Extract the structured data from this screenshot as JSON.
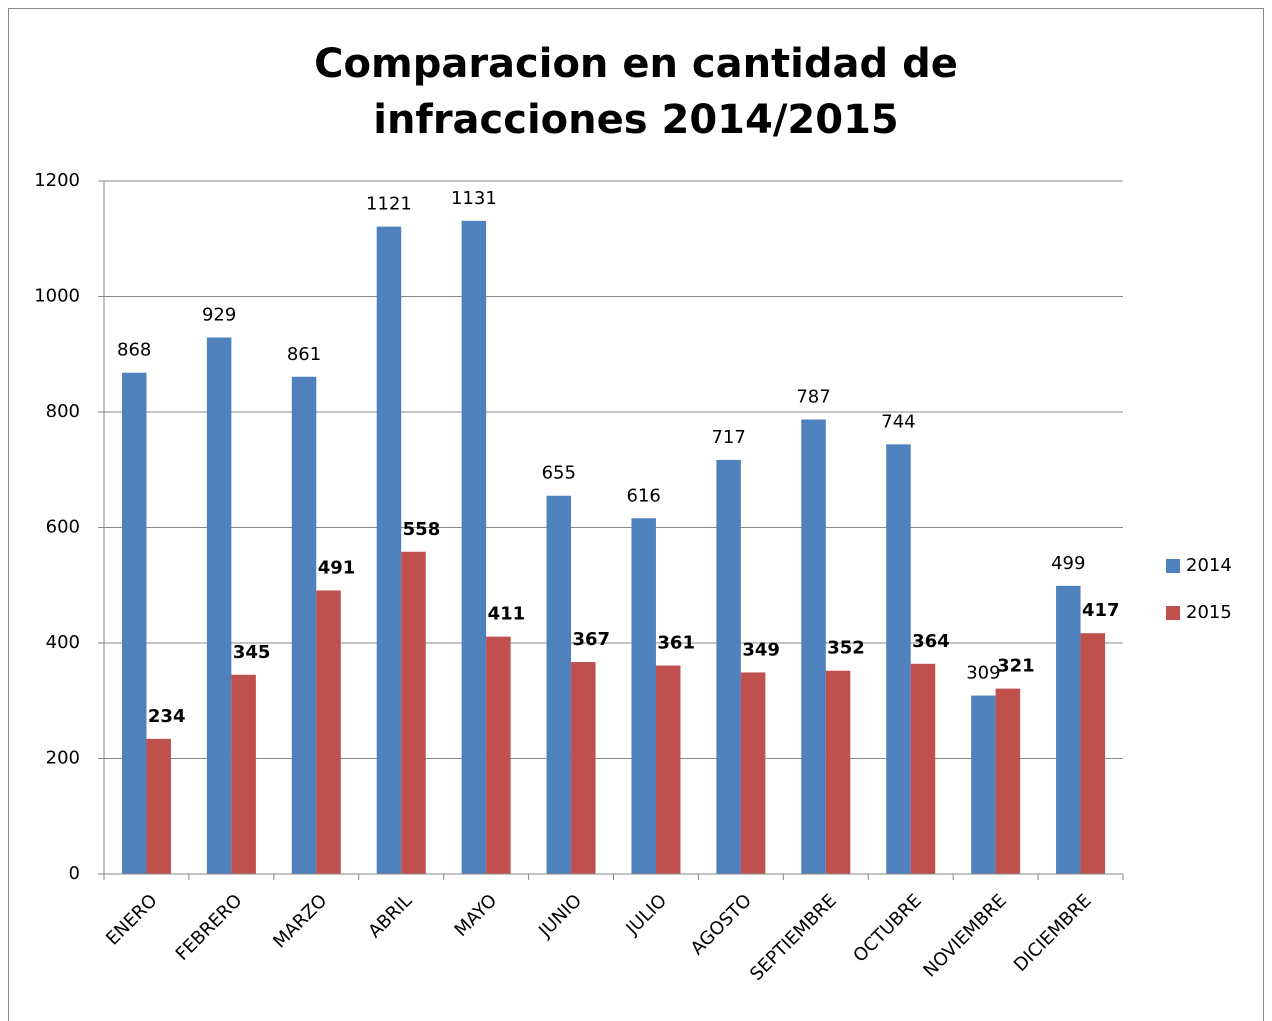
{
  "chart_data": {
    "type": "bar",
    "title": "Comparacion en cantidad de infracciones 2014/2015",
    "categories": [
      "ENERO",
      "FEBRERO",
      "MARZO",
      "ABRIL",
      "MAYO",
      "JUNIO",
      "JULIO",
      "AGOSTO",
      "SEPTIEMBRE",
      "OCTUBRE",
      "NOVIEMBRE",
      "DICIEMBRE"
    ],
    "series": [
      {
        "name": "2014",
        "color": "#4f81bd",
        "values": [
          868,
          929,
          861,
          1121,
          1131,
          655,
          616,
          717,
          787,
          744,
          309,
          499
        ]
      },
      {
        "name": "2015",
        "color": "#c0504d",
        "values": [
          234,
          345,
          491,
          558,
          411,
          367,
          361,
          349,
          352,
          364,
          321,
          417
        ]
      }
    ],
    "ylim": [
      0,
      1200
    ],
    "yticks": [
      0,
      200,
      400,
      600,
      800,
      1000,
      1200
    ],
    "grid": true,
    "legend": "right"
  }
}
